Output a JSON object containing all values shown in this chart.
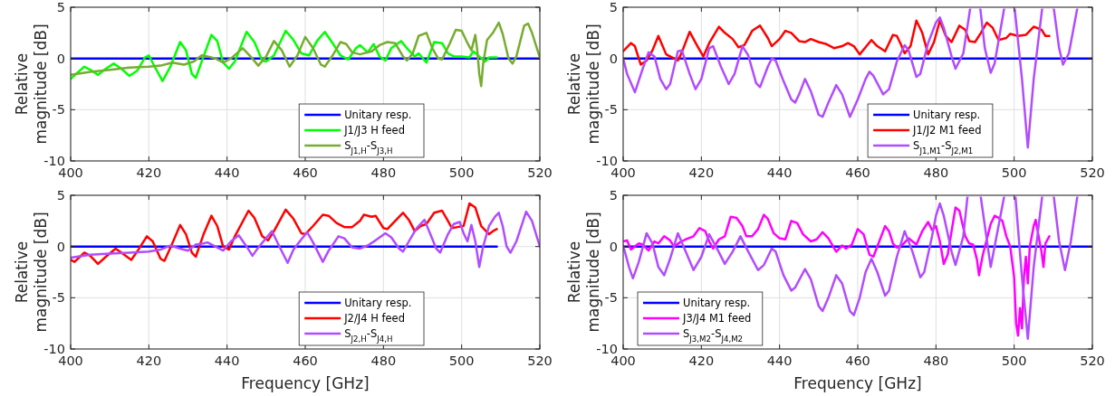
{
  "chart_data": [
    {
      "type": "line",
      "ylabel": "Relative magnitude [dB]",
      "xlim": [
        400,
        520
      ],
      "xticks": [
        400,
        420,
        440,
        460,
        480,
        500,
        520
      ],
      "ylim": [
        -10,
        5
      ],
      "yticks": [
        -10,
        -5,
        0,
        5
      ],
      "grid": true,
      "legend": "bottom right",
      "series": [
        {
          "name": "Unitary resp.",
          "color": "#0000ff",
          "x": [
            400,
            520
          ],
          "values": [
            0,
            0
          ]
        },
        {
          "name": "J1/J3 H feed",
          "color": "#00ff00",
          "x": [
            400,
            402,
            403.5,
            405,
            407,
            409,
            411,
            413,
            415,
            417,
            419,
            420,
            421.5,
            423.5,
            425.5,
            428,
            429.5,
            431,
            432,
            434,
            436,
            437.5,
            439,
            440.5,
            442,
            445,
            447,
            449,
            450,
            452,
            455,
            457,
            459,
            461,
            463,
            465,
            467,
            469,
            471,
            473,
            474,
            476,
            477.5,
            479,
            480.5,
            482,
            484.5,
            486,
            488,
            489,
            491,
            493,
            495,
            496.5,
            498,
            500,
            502,
            503,
            504.5,
            506,
            507,
            509
          ],
          "values": [
            -2.0,
            -1.3,
            -0.8,
            -1.1,
            -1.6,
            -1.0,
            -0.5,
            -1.0,
            -1.7,
            -1.2,
            0.1,
            0.3,
            -0.8,
            -2.2,
            -0.8,
            1.6,
            0.8,
            -1.5,
            -1.9,
            0.2,
            2.3,
            1.7,
            -0.4,
            -1.0,
            -0.3,
            2.6,
            1.6,
            -0.2,
            -0.3,
            0.3,
            2.7,
            1.8,
            0.5,
            0.3,
            1.7,
            2.6,
            1.5,
            0.3,
            -0.1,
            1.0,
            1.3,
            0.6,
            1.4,
            0.2,
            -0.2,
            1.0,
            1.7,
            1.0,
            0.2,
            0.5,
            -0.4,
            1.6,
            1.5,
            0.5,
            0.2,
            0.2,
            0.1,
            0.7,
            0.2,
            -0.3,
            0.1,
            0.1
          ]
        },
        {
          "name": "S$_{J1,H}$-S$_{J3,H}$",
          "color": "#77ac30",
          "x": [
            400,
            405,
            410,
            415,
            420,
            423,
            426,
            429,
            431.5,
            433.5,
            435,
            437,
            439,
            441,
            444,
            446,
            448,
            450,
            452,
            454,
            456,
            458,
            460,
            462,
            464,
            465,
            467,
            469,
            470.5,
            472,
            474,
            477,
            479,
            481,
            483,
            485,
            486,
            487.5,
            489,
            491,
            492.5,
            494,
            495,
            497,
            498.5,
            500,
            501.5,
            502.5,
            503.5,
            504,
            504.5,
            505,
            505.5,
            506.5,
            508,
            509.5,
            510.5,
            512,
            513,
            514,
            516,
            517,
            518,
            520
          ],
          "values": [
            -1.6,
            -1.3,
            -1.1,
            -0.9,
            -0.8,
            -0.7,
            -0.4,
            -0.6,
            -0.3,
            0.3,
            0.2,
            0.0,
            -0.4,
            0.0,
            1.0,
            0.2,
            -0.7,
            0.2,
            1.7,
            0.8,
            -0.8,
            0.3,
            2.1,
            1.0,
            -0.6,
            -0.8,
            0.3,
            1.6,
            1.4,
            0.6,
            0.4,
            0.7,
            1.3,
            1.6,
            1.5,
            0.2,
            -0.2,
            0.5,
            2.2,
            2.5,
            1.0,
            0.0,
            -0.1,
            1.5,
            2.8,
            2.7,
            1.5,
            0.8,
            2.3,
            0.8,
            -1.5,
            -2.7,
            -0.5,
            1.8,
            2.5,
            3.5,
            2.4,
            0.0,
            -0.5,
            0.2,
            3.2,
            3.4,
            2.5,
            0.1
          ]
        }
      ]
    },
    {
      "type": "line",
      "ylabel": "Relative magnitude [dB]",
      "xlim": [
        400,
        520
      ],
      "xticks": [
        400,
        420,
        440,
        460,
        480,
        500,
        520
      ],
      "ylim": [
        -10,
        5
      ],
      "yticks": [
        -10,
        -5,
        0,
        5
      ],
      "grid": true,
      "legend": "bottom",
      "series": [
        {
          "name": "Unitary resp.",
          "color": "#0000ff",
          "x": [
            400,
            520
          ],
          "values": [
            0,
            0
          ]
        },
        {
          "name": "J1/J2 M1 feed",
          "color": "#ff0000",
          "x": [
            400,
            402,
            403,
            404.5,
            406,
            407.5,
            409,
            410,
            411,
            413,
            414,
            415,
            417,
            419,
            420.5,
            422,
            424.5,
            426,
            428,
            429.5,
            431,
            433,
            435,
            437,
            438,
            440,
            441.5,
            443,
            445,
            446.5,
            448,
            450,
            452,
            454,
            456,
            457.5,
            459,
            460.5,
            462,
            463.5,
            465,
            467,
            469,
            470,
            471,
            472,
            473.5,
            475,
            476.5,
            478,
            479.5,
            481,
            482.5,
            484,
            486,
            487.5,
            488.5,
            490,
            491.5,
            493,
            494.5,
            496,
            498,
            499,
            501,
            503,
            505,
            507,
            508,
            509
          ],
          "values": [
            0.7,
            1.5,
            1.2,
            -0.6,
            -0.2,
            0.8,
            2.2,
            1.3,
            0.4,
            0.0,
            -0.2,
            0.6,
            2.6,
            1.2,
            0.2,
            1.5,
            3.1,
            2.5,
            1.9,
            1.1,
            1.3,
            2.7,
            3.2,
            2.0,
            1.2,
            1.9,
            2.7,
            2.5,
            1.7,
            1.6,
            1.9,
            1.6,
            1.4,
            1.0,
            1.2,
            1.5,
            1.2,
            0.4,
            1.1,
            1.8,
            1.2,
            0.7,
            2.3,
            2.2,
            1.4,
            0.5,
            1.2,
            3.7,
            2.5,
            0.4,
            1.6,
            3.7,
            2.2,
            1.6,
            3.2,
            2.8,
            1.7,
            1.6,
            2.5,
            3.5,
            3.0,
            1.8,
            2.0,
            2.4,
            2.2,
            2.3,
            3.1,
            2.8,
            2.2,
            2.2
          ]
        },
        {
          "name": "S$_{J1,M1}$-S$_{J2,M1}$",
          "color": "#b14cff",
          "x": [
            400,
            401,
            403,
            405,
            406.5,
            408,
            409.5,
            411,
            412,
            414,
            415,
            417,
            418.5,
            420,
            422,
            423,
            425,
            427,
            428.5,
            430.5,
            432,
            434,
            435,
            437,
            438,
            439,
            441,
            443,
            444,
            445,
            446.5,
            448,
            450,
            451,
            452.5,
            454.5,
            456,
            458,
            460,
            462,
            463,
            464,
            466.5,
            468,
            470,
            472,
            473,
            475,
            476,
            478,
            480,
            481,
            482,
            484,
            485,
            487,
            488.8,
            491.3,
            492.5,
            494,
            495,
            497.5,
            500.1,
            502,
            503.5,
            505,
            507.2,
            510.1,
            511.5,
            512.5,
            514,
            516.2
          ],
          "values": [
            0.0,
            -1.5,
            -3.3,
            -1.0,
            0.6,
            0.2,
            -2.0,
            -3.0,
            -2.5,
            0.7,
            0.8,
            -1.5,
            -3.0,
            -2.0,
            1.0,
            1.2,
            -0.8,
            -2.5,
            -1.5,
            1.2,
            0.3,
            -2.4,
            -2.8,
            -0.8,
            0.0,
            -0.2,
            -2.2,
            -4.0,
            -4.3,
            -3.5,
            -2.0,
            -3.2,
            -5.5,
            -5.7,
            -4.3,
            -2.6,
            -3.5,
            -5.7,
            -4.0,
            -2.0,
            -1.3,
            -1.7,
            -3.5,
            -3.0,
            -0.3,
            1.3,
            0.8,
            -1.8,
            -1.5,
            1.5,
            3.5,
            4.0,
            3.0,
            0.2,
            -1.0,
            0.5,
            5,
            5,
            1.0,
            -1.4,
            -0.5,
            5,
            5,
            -2.0,
            -8.7,
            -2.0,
            5,
            5,
            1.0,
            -0.6,
            0.5,
            5
          ]
        }
      ]
    },
    {
      "type": "line",
      "xlabel": "Frequency [GHz]",
      "ylabel": "Relative magnitude [dB]",
      "xlim": [
        400,
        520
      ],
      "xticks": [
        400,
        420,
        440,
        460,
        480,
        500,
        520
      ],
      "ylim": [
        -10,
        5
      ],
      "yticks": [
        -10,
        -5,
        0,
        5
      ],
      "grid": true,
      "legend": "bottom right",
      "series": [
        {
          "name": "Unitary resp.",
          "color": "#0000ff",
          "x": [
            400,
            509
          ],
          "values": [
            0,
            0
          ]
        },
        {
          "name": "J2/J4 H feed",
          "color": "#ff0000",
          "x": [
            400,
            401,
            403.5,
            405,
            407,
            409,
            411.5,
            413,
            415.5,
            417,
            419.5,
            421,
            423,
            424,
            426,
            428,
            429.5,
            431,
            432,
            434,
            436,
            437.5,
            439,
            440.5,
            442,
            445.5,
            447,
            449,
            450.5,
            452,
            455,
            457,
            459,
            460,
            462,
            464.5,
            466,
            468,
            470,
            472,
            474,
            475,
            477,
            478,
            480,
            481,
            483,
            485,
            486.5,
            488,
            489.5,
            491,
            493,
            495,
            496.5,
            497.5,
            499,
            500.5,
            502,
            503.5,
            505,
            507,
            508,
            509
          ],
          "values": [
            -1.3,
            -1.5,
            -0.6,
            -0.9,
            -1.7,
            -1.0,
            -0.2,
            -0.6,
            -1.3,
            -0.5,
            1.0,
            0.5,
            -1.2,
            -1.4,
            0.3,
            2.1,
            1.2,
            -0.6,
            -1.0,
            1.2,
            3.0,
            2.0,
            0.0,
            -0.3,
            1.0,
            3.5,
            2.8,
            1.0,
            0.6,
            1.5,
            3.6,
            2.7,
            1.3,
            1.2,
            2.0,
            3.1,
            3.0,
            2.3,
            1.9,
            1.9,
            2.5,
            3.1,
            2.9,
            3.0,
            1.8,
            1.7,
            2.5,
            3.3,
            2.6,
            1.5,
            2.0,
            2.2,
            3.3,
            3.5,
            2.5,
            1.8,
            1.9,
            2.0,
            4.2,
            3.8,
            2.0,
            1.2,
            1.5,
            1.7
          ]
        },
        {
          "name": "S$_{J2,H}$-S$_{J4,H}$",
          "color": "#b14cff",
          "x": [
            400,
            405,
            410,
            415,
            420,
            423,
            425.5,
            428,
            430,
            432,
            434,
            435,
            437,
            439,
            441,
            443,
            445,
            446.5,
            448,
            451.5,
            453,
            455.5,
            457,
            459,
            460.5,
            462,
            464.5,
            466,
            468.5,
            470,
            472,
            474,
            476,
            478,
            480.5,
            482,
            484,
            485,
            486.5,
            488.5,
            490.5,
            492,
            493.5,
            494.5,
            496.5,
            498,
            499.5,
            500.5,
            501.5,
            502.5,
            503.5,
            504.5,
            505.5,
            507,
            508.5,
            509.5,
            510.5,
            511.5,
            512.5,
            514,
            516.5,
            518,
            520
          ],
          "values": [
            -1.1,
            -0.8,
            -0.7,
            -0.6,
            -0.5,
            -0.3,
            0.1,
            -0.2,
            -0.4,
            0.2,
            0.3,
            0.4,
            0.0,
            -0.4,
            0.5,
            1.1,
            0.0,
            -0.9,
            -0.1,
            1.5,
            0.3,
            -1.6,
            -0.3,
            0.7,
            1.4,
            0.4,
            -1.5,
            -0.4,
            1.0,
            0.8,
            -0.1,
            -0.2,
            0.1,
            0.6,
            1.3,
            0.9,
            -0.2,
            -0.5,
            0.5,
            1.8,
            2.6,
            1.2,
            -0.2,
            -0.6,
            1.2,
            2.2,
            2.4,
            1.3,
            0.5,
            2.1,
            0.5,
            -2.0,
            0.0,
            2.0,
            2.9,
            3.3,
            2.0,
            0.0,
            -0.6,
            0.5,
            3.4,
            2.5,
            0.0
          ]
        }
      ]
    },
    {
      "type": "line",
      "xlabel": "Frequency [GHz]",
      "ylabel": "Relative magnitude [dB]",
      "xlim": [
        400,
        520
      ],
      "xticks": [
        400,
        420,
        440,
        460,
        480,
        500,
        520
      ],
      "ylim": [
        -10,
        5
      ],
      "yticks": [
        -10,
        -5,
        0,
        5
      ],
      "grid": true,
      "legend": "bottom left",
      "series": [
        {
          "name": "Unitary resp.",
          "color": "#0000ff",
          "x": [
            400,
            520
          ],
          "values": [
            0,
            0
          ]
        },
        {
          "name": "J3/J4 M1 feed",
          "color": "#ff00ff",
          "x": [
            400,
            401,
            402,
            404,
            405,
            406.5,
            408,
            409,
            410.5,
            412,
            413,
            414.5,
            416,
            418,
            419.5,
            421,
            422,
            423,
            424.5,
            426,
            427.5,
            429,
            430.5,
            431.5,
            433,
            434.5,
            436,
            437,
            438.5,
            440,
            441.5,
            443,
            444.5,
            446,
            448,
            449.5,
            451,
            452.5,
            454,
            454.5,
            456,
            457,
            458.5,
            460,
            461.5,
            463,
            464,
            465.5,
            467,
            468,
            469,
            470,
            471.5,
            473,
            475,
            476.5,
            478,
            479,
            480,
            481,
            482,
            483,
            484,
            485,
            486,
            487.5,
            488.5,
            489.5,
            490.5,
            491,
            492,
            493,
            494,
            495,
            496,
            497,
            498,
            499,
            500,
            500.5,
            501,
            501.5,
            502,
            502.5,
            503,
            503.5,
            504,
            505,
            505.5,
            506.5,
            507,
            507.5,
            508,
            509
          ],
          "values": [
            0.5,
            0.6,
            -0.3,
            0.3,
            0.2,
            -0.4,
            0.5,
            0.3,
            1.0,
            0.6,
            0.0,
            0.4,
            0.7,
            1.0,
            1.8,
            1.5,
            0.5,
            -0.2,
            0.7,
            1.0,
            2.9,
            2.8,
            2.0,
            1.0,
            1.0,
            1.7,
            3.1,
            2.7,
            1.3,
            0.8,
            0.7,
            2.5,
            2.3,
            1.2,
            0.5,
            0.7,
            1.4,
            0.8,
            -0.2,
            -0.5,
            0.1,
            -0.2,
            0.2,
            1.7,
            1.2,
            -0.8,
            -1.0,
            0.5,
            2.0,
            1.5,
            0.3,
            -0.1,
            0.2,
            0.8,
            0.2,
            1.5,
            2.4,
            1.6,
            2.0,
            0.5,
            -1.7,
            -0.8,
            1.5,
            3.8,
            3.5,
            1.0,
            0.3,
            0.2,
            -1.3,
            -2.8,
            -0.8,
            0.7,
            2.2,
            3.0,
            2.8,
            2.5,
            1.0,
            0.0,
            -3.0,
            -7.5,
            -8.7,
            -6.0,
            -8.0,
            -3.0,
            -1.0,
            -3.6,
            0.0,
            2.0,
            2.6,
            0.5,
            -0.5,
            -2.0,
            0.3,
            1.0
          ]
        },
        {
          "name": "S$_{J3,M2}$-S$_{J4,M2}$",
          "color": "#b14cff",
          "x": [
            400,
            401.5,
            402.5,
            404,
            406,
            407.5,
            409,
            410.5,
            412,
            414,
            416,
            418,
            420,
            422,
            424,
            426,
            428,
            430,
            432,
            434.5,
            436,
            438,
            439,
            441,
            443,
            444,
            446.5,
            448,
            450,
            451,
            452.5,
            454.5,
            456,
            458,
            459,
            460.5,
            462,
            463.5,
            465,
            467,
            468,
            470,
            472,
            474,
            476,
            477,
            479,
            480,
            481,
            482,
            484,
            485,
            487,
            488.1,
            491.4,
            494,
            497.5,
            500.3,
            502,
            503.5,
            505,
            507.2,
            510.1,
            511.5,
            513,
            514.5,
            516.2
          ],
          "values": [
            0.1,
            -2.0,
            -3.1,
            -1.5,
            1.3,
            0.3,
            -2.0,
            -2.8,
            -1.2,
            1.3,
            -0.5,
            -2.3,
            -1.0,
            1.2,
            -0.2,
            -1.7,
            -0.5,
            1.0,
            -0.5,
            -2.3,
            -1.8,
            -0.2,
            -0.5,
            -2.8,
            -4.3,
            -4.0,
            -2.2,
            -3.2,
            -5.8,
            -6.3,
            -5.0,
            -2.8,
            -3.6,
            -6.3,
            -6.7,
            -5.0,
            -2.5,
            -1.2,
            -2.5,
            -4.8,
            -4.3,
            -1.0,
            1.5,
            -0.5,
            -3.0,
            -2.5,
            1.0,
            3.0,
            4.2,
            3.0,
            -0.5,
            -1.8,
            1.0,
            5,
            5,
            -2.0,
            5,
            5,
            -3.0,
            -9.0,
            -2.0,
            5,
            5,
            0.5,
            -2.3,
            0.5,
            5
          ]
        }
      ]
    }
  ]
}
